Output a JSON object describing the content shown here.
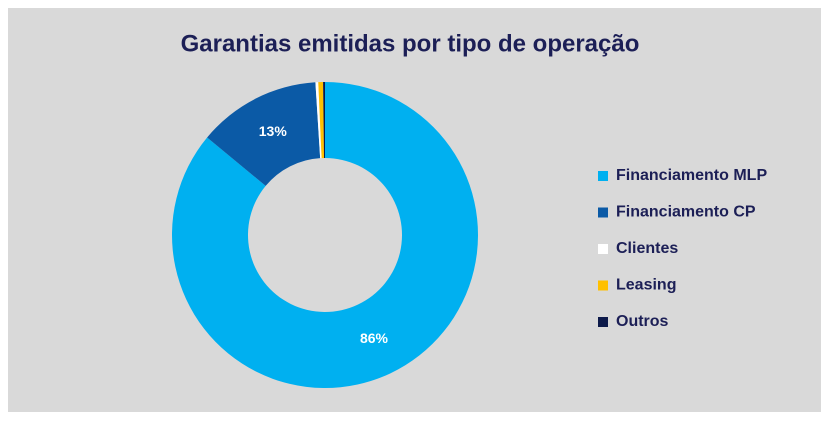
{
  "chart_data": {
    "type": "donut",
    "title": "Garantias emitidas por tipo de operação",
    "categories": [
      "Financiamento MLP",
      "Financiamento CP",
      "Clientes",
      "Leasing",
      "Outros"
    ],
    "values": [
      86,
      13,
      0.3,
      0.5,
      0.2
    ],
    "value_labels": [
      "86%",
      "13%",
      null,
      null,
      null
    ],
    "colors": [
      "#00b0f0",
      "#0b5aa6",
      "#ffffff",
      "#ffc000",
      "#0d1a4a"
    ],
    "legend": "right"
  }
}
